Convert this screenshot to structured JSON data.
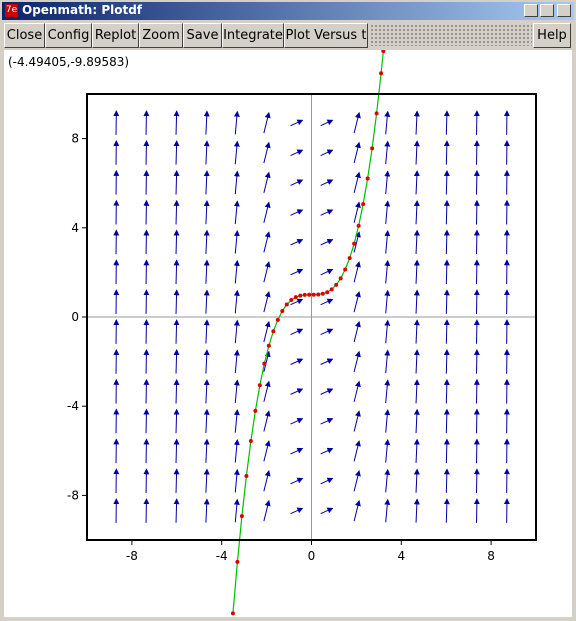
{
  "window": {
    "title": "Openmath: Plotdf"
  },
  "toolbar": {
    "buttons": [
      "Close",
      "Config",
      "Replot",
      "Zoom",
      "Save",
      "Integrate",
      "Plot Versus t"
    ],
    "help": "Help"
  },
  "readout": "(-4.49405,-9.89583)",
  "chart_data": {
    "type": "field",
    "xlim": [
      -10,
      10
    ],
    "ylim": [
      -10,
      10
    ],
    "xticks": [
      -8,
      -4,
      0,
      4,
      8
    ],
    "yticks": [
      -8,
      -4,
      0,
      4,
      8
    ],
    "field": {
      "color": "#0000a0",
      "x": [
        -8.7,
        -7.36,
        -6.02,
        -4.68,
        -3.35,
        -2.01,
        -0.67,
        0.67,
        2.01,
        3.35,
        4.68,
        6.02,
        7.36,
        8.7
      ],
      "y": [
        -8.7,
        -7.36,
        -6.02,
        -4.68,
        -3.35,
        -2.01,
        -0.67,
        0.67,
        2.01,
        3.35,
        4.68,
        6.02,
        7.36,
        8.7
      ],
      "slopes": [
        75.7,
        54.2,
        36.2,
        21.9,
        11.2,
        4.04,
        0.45,
        0.45,
        4.04,
        11.2,
        21.9,
        36.2,
        54.2,
        75.7
      ]
    },
    "trajectory": {
      "line_color": "#00c000",
      "point_color": "#e00000",
      "x": [
        -3.5,
        -3.3,
        -3.1,
        -2.9,
        -2.7,
        -2.5,
        -2.3,
        -2.1,
        -1.9,
        -1.7,
        -1.5,
        -1.3,
        -1.1,
        -0.9,
        -0.7,
        -0.5,
        -0.3,
        -0.1,
        0.1,
        0.3,
        0.5,
        0.7,
        0.9,
        1.1,
        1.3,
        1.5,
        1.7,
        1.9,
        2.1,
        2.3,
        2.5,
        2.7,
        2.9,
        3.1,
        3.2
      ],
      "y": [
        -13.29,
        -10.98,
        -8.93,
        -7.13,
        -5.56,
        -4.21,
        -3.06,
        -2.09,
        -1.29,
        -0.64,
        -0.13,
        0.27,
        0.56,
        0.76,
        0.89,
        0.96,
        0.99,
        1.0,
        1.0,
        1.01,
        1.04,
        1.11,
        1.24,
        1.44,
        1.73,
        2.13,
        2.64,
        3.29,
        4.09,
        5.06,
        6.21,
        7.56,
        9.13,
        10.93,
        11.92
      ]
    }
  }
}
